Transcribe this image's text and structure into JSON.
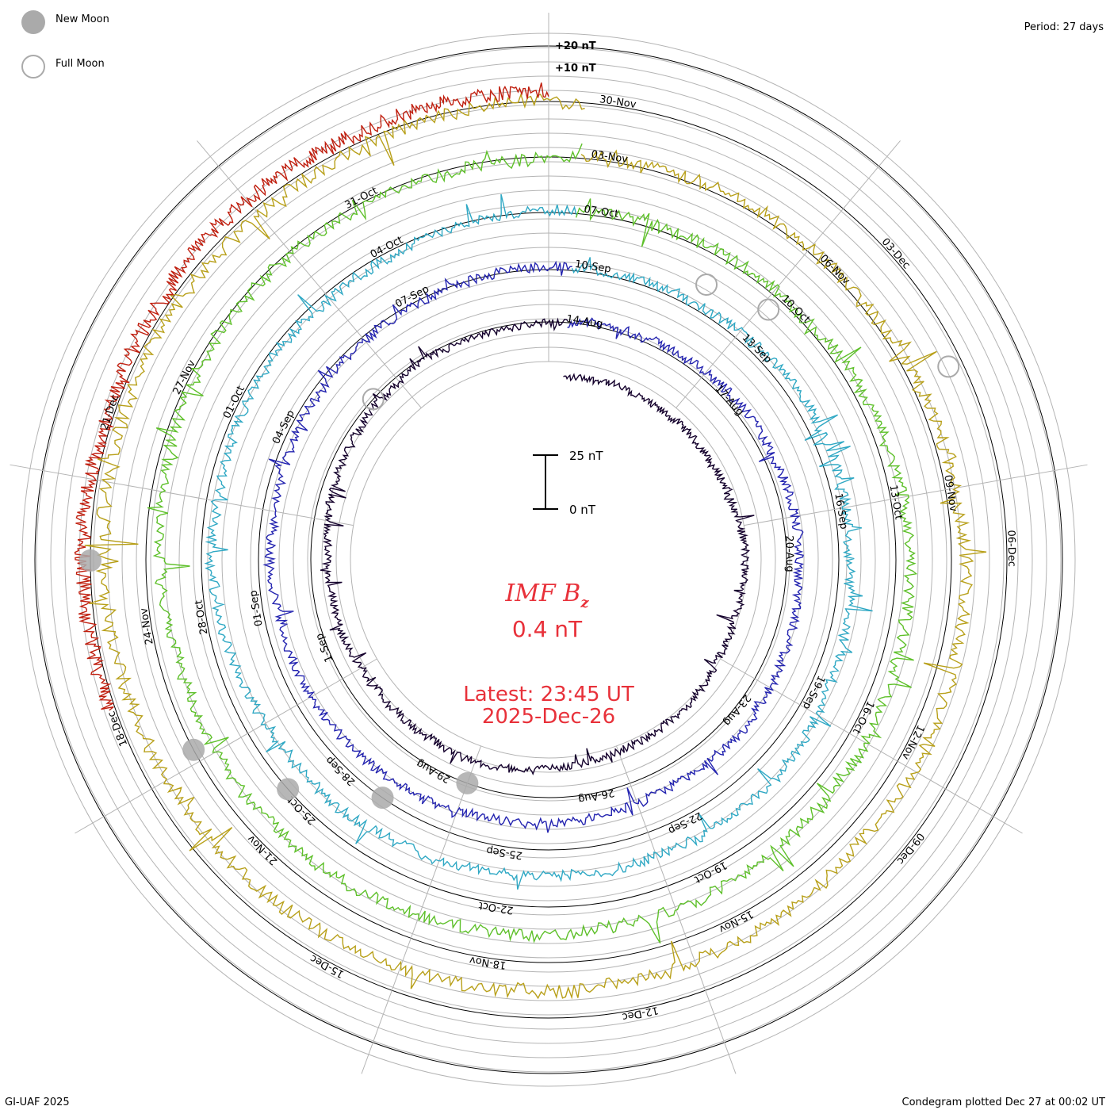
{
  "legend": {
    "new_moon": "New Moon",
    "full_moon": "Full Moon"
  },
  "header": {
    "period": "Period: 27 days"
  },
  "scale": {
    "plus20": "+20 nT",
    "plus10": "+10 nT",
    "bar_top": "25 nT",
    "bar_bottom": "0 nT"
  },
  "center": {
    "quantity_main": "IMF B",
    "quantity_sub": "z",
    "value": "0.4 nT",
    "latest": "Latest: 23:45 UT",
    "date": "2025-Dec-26"
  },
  "footer": {
    "credit": "GI-UAF 2025",
    "plotted": "Condegram plotted Dec 27 at 00:02 UT"
  },
  "colors": {
    "text_red": "#e8313a",
    "grid": "#b4b4b4",
    "moon_new": "#aaaaaa",
    "moon_full": "#aaaaaa"
  },
  "chart_data": {
    "type": "condegram",
    "title": "IMF Bz",
    "period_days": 27,
    "units": "nT",
    "rings": [
      {
        "cycle": 1,
        "color": "#14002c",
        "labels": [
          "14-Aug",
          "17-Aug",
          "20-Aug",
          "23-Aug",
          "26-Aug",
          "29-Aug",
          "1-Sep"
        ]
      },
      {
        "cycle": 2,
        "color": "#2424b0",
        "labels": [
          "10-Sep",
          "13-Sep",
          "16-Sep",
          "19-Sep",
          "22-Sep",
          "25-Sep",
          "28-Sep",
          "01-Sep",
          "04-Sep",
          "07-Sep"
        ]
      },
      {
        "cycle": 3,
        "color": "#2fa8c4",
        "labels": [
          "07-Oct",
          "10-Oct",
          "13-Oct",
          "16-Oct",
          "19-Oct",
          "22-Oct",
          "25-Oct",
          "28-Oct",
          "01-Oct",
          "04-Oct"
        ]
      },
      {
        "cycle": 4,
        "color": "#5ec02a",
        "labels": [
          "03-Nov",
          "06-Nov",
          "09-Nov",
          "12-Nov",
          "15-Nov",
          "18-Nov",
          "21-Nov",
          "24-Nov",
          "27-Nov",
          "31-Oct"
        ]
      },
      {
        "cycle": 5,
        "color": "#b8a01a",
        "labels": [
          "30-Nov",
          "03-Dec",
          "06-Dec",
          "09-Dec",
          "12-Dec",
          "15-Dec",
          "18-Dec",
          "21-Dec"
        ]
      },
      {
        "cycle": 6,
        "color": "#c02010",
        "labels": []
      }
    ],
    "moon_phases": {
      "new": [
        "~Aug 23",
        "~Sep 21",
        "~Oct 21",
        "~Nov 20",
        "~Dec 20"
      ],
      "full": [
        "~Sep 7",
        "~Oct 7",
        "~Nov 5",
        "~Dec 4"
      ]
    },
    "latest_value": 0.4,
    "latest_time": "2025-Dec-26 23:45 UT"
  }
}
